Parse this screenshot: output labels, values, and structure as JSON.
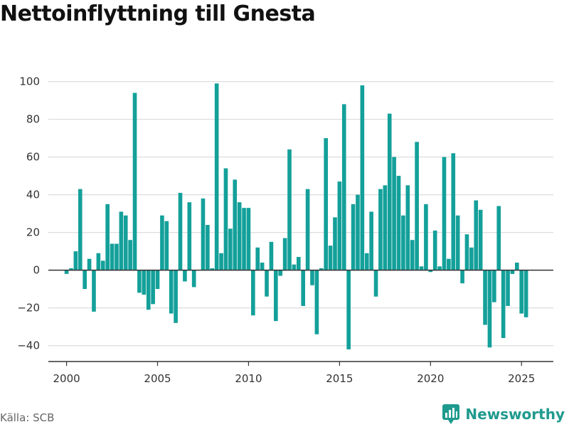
{
  "title": "Nettoinflyttning till Gnesta",
  "source": "Källa: SCB",
  "brand": {
    "name": "Newsworthy",
    "icon": "newsworthy-logo-icon"
  },
  "colors": {
    "bar": "#14a09a",
    "grid": "#dddddd",
    "zero_line": "#333333",
    "brand": "#1f9a8e"
  },
  "chart_data": {
    "type": "bar",
    "title": "Nettoinflyttning till Gnesta",
    "xlabel": "",
    "ylabel": "",
    "ylim": [
      -48,
      100
    ],
    "xlim": [
      1999.0,
      2026.75
    ],
    "yticks": [
      -40,
      -20,
      0,
      20,
      40,
      60,
      80,
      100
    ],
    "xticks": [
      2000,
      2005,
      2010,
      2015,
      2020,
      2025
    ],
    "grid": true,
    "legend": "none",
    "bar_width_years": 0.22,
    "series": [
      {
        "x": [
          2000.0,
          2000.25,
          2000.5,
          2000.75,
          2001.0,
          2001.25,
          2001.5,
          2001.75,
          2002.0,
          2002.25,
          2002.5,
          2002.75,
          2003.0,
          2003.25,
          2003.5,
          2003.75,
          2004.0,
          2004.25,
          2004.5,
          2004.75,
          2005.0,
          2005.25,
          2005.5,
          2005.75,
          2006.0,
          2006.25,
          2006.5,
          2006.75,
          2007.0,
          2007.25,
          2007.5,
          2007.75,
          2008.0,
          2008.25,
          2008.5,
          2008.75,
          2009.0,
          2009.25,
          2009.5,
          2009.75,
          2010.0,
          2010.25,
          2010.5,
          2010.75,
          2011.0,
          2011.25,
          2011.5,
          2011.75,
          2012.0,
          2012.25,
          2012.5,
          2012.75,
          2013.0,
          2013.25,
          2013.5,
          2013.75,
          2014.0,
          2014.25,
          2014.5,
          2014.75,
          2015.0,
          2015.25,
          2015.5,
          2015.75,
          2016.0,
          2016.25,
          2016.5,
          2016.75,
          2017.0,
          2017.25,
          2017.5,
          2017.75,
          2018.0,
          2018.25,
          2018.5,
          2018.75,
          2019.0,
          2019.25,
          2019.5,
          2019.75,
          2020.0,
          2020.25,
          2020.5,
          2020.75,
          2021.0,
          2021.25,
          2021.5,
          2021.75,
          2022.0,
          2022.25,
          2022.5,
          2022.75,
          2023.0,
          2023.25,
          2023.5,
          2023.75,
          2024.0,
          2024.25,
          2024.5,
          2024.75,
          2025.0,
          2025.25
        ],
        "values": [
          -2,
          1,
          10,
          43,
          -10,
          6,
          -22,
          9,
          5,
          35,
          14,
          14,
          31,
          29,
          16,
          94,
          -12,
          -13,
          -21,
          -18,
          -10,
          29,
          26,
          -23,
          -28,
          41,
          -6,
          36,
          -9,
          0,
          38,
          24,
          1,
          99,
          9,
          54,
          22,
          48,
          36,
          33,
          33,
          -24,
          12,
          4,
          -14,
          15,
          -27,
          -3,
          17,
          64,
          3,
          7,
          -19,
          43,
          -8,
          -34,
          1,
          70,
          13,
          28,
          47,
          88,
          -42,
          35,
          40,
          98,
          9,
          31,
          -14,
          43,
          45,
          83,
          60,
          50,
          29,
          45,
          16,
          68,
          2,
          35,
          -1,
          21,
          2,
          60,
          6,
          62,
          29,
          -7,
          19,
          12,
          37,
          32,
          -29,
          -41,
          -17,
          34,
          -36,
          -19,
          -2,
          4,
          -23,
          -25
        ]
      }
    ]
  }
}
